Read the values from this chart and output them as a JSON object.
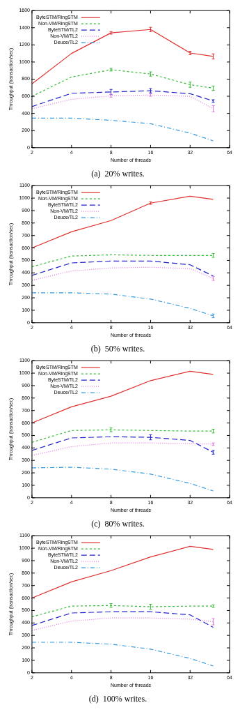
{
  "chart_data": [
    {
      "type": "line",
      "title": "(a)  20% writes.",
      "xlabel": "Number of threads",
      "ylabel": "Throughput (transaction/sec)",
      "x": [
        2,
        4,
        8,
        16,
        32,
        48
      ],
      "log": "x",
      "xlim": [
        2,
        64
      ],
      "xticks": [
        2,
        4,
        8,
        16,
        32,
        64
      ],
      "ylim": [
        0,
        1600
      ],
      "yticks": [
        0,
        200,
        400,
        600,
        800,
        1000,
        1200,
        1400,
        1600
      ],
      "legend": "top left",
      "series": [
        {
          "name": "ByteSTM/RingSTM",
          "color": "#e03030",
          "line_style": "solid",
          "values": [
            745,
            1100,
            1340,
            1380,
            1105,
            1065
          ],
          "errors": [
            null,
            null,
            15,
            25,
            20,
            30
          ]
        },
        {
          "name": "Non-VM/RingSTM",
          "color": "#33bb33",
          "line_style": "dashed",
          "values": [
            600,
            825,
            910,
            860,
            735,
            695
          ],
          "errors": [
            null,
            null,
            15,
            25,
            30,
            25
          ]
        },
        {
          "name": "ByteSTM/TL2",
          "color": "#2222cc",
          "line_style": "longdash",
          "values": [
            480,
            635,
            650,
            665,
            630,
            545
          ],
          "errors": [
            null,
            null,
            30,
            25,
            null,
            15
          ]
        },
        {
          "name": "Non-VM/TL2",
          "color": "#dd77dd",
          "line_style": "dotted",
          "values": [
            455,
            565,
            605,
            615,
            600,
            455
          ],
          "errors": [
            null,
            null,
            15,
            15,
            null,
            35
          ]
        },
        {
          "name": "Deuce/TL2",
          "color": "#3399dd",
          "line_style": "dashdot",
          "values": [
            345,
            345,
            320,
            280,
            170,
            80
          ]
        }
      ]
    },
    {
      "type": "line",
      "title": "(b)  50% writes.",
      "xlabel": "Number of threads",
      "ylabel": "Throughput (transaction/sec)",
      "x": [
        2,
        4,
        8,
        16,
        32,
        48
      ],
      "log": "x",
      "xlim": [
        2,
        64
      ],
      "xticks": [
        2,
        4,
        8,
        16,
        32,
        64
      ],
      "ylim": [
        0,
        1100
      ],
      "yticks": [
        0,
        100,
        200,
        300,
        400,
        500,
        600,
        700,
        800,
        900,
        1000,
        1100
      ],
      "legend": "top left",
      "series": [
        {
          "name": "ByteSTM/RingSTM",
          "color": "#e03030",
          "line_style": "solid",
          "values": [
            600,
            730,
            820,
            960,
            1015,
            990
          ],
          "errors": [
            null,
            null,
            null,
            10,
            null,
            null
          ]
        },
        {
          "name": "Non-VM/RingSTM",
          "color": "#33bb33",
          "line_style": "dashed",
          "values": [
            450,
            535,
            545,
            540,
            540,
            540
          ],
          "errors": [
            null,
            null,
            null,
            null,
            null,
            15
          ]
        },
        {
          "name": "ByteSTM/TL2",
          "color": "#2222cc",
          "line_style": "longdash",
          "values": [
            380,
            480,
            495,
            495,
            465,
            375
          ]
        },
        {
          "name": "Non-VM/TL2",
          "color": "#dd77dd",
          "line_style": "dotted",
          "values": [
            340,
            415,
            440,
            445,
            435,
            355
          ],
          "errors": [
            null,
            null,
            null,
            null,
            null,
            15
          ]
        },
        {
          "name": "Deuce/TL2",
          "color": "#3399dd",
          "line_style": "dashdot",
          "values": [
            240,
            240,
            230,
            190,
            115,
            55
          ],
          "errors": [
            null,
            null,
            null,
            null,
            null,
            15
          ]
        }
      ]
    },
    {
      "type": "line",
      "title": "(c)  80% writes.",
      "xlabel": "Number of threads",
      "ylabel": "Throughput (transaction/sec)",
      "x": [
        2,
        4,
        8,
        16,
        32,
        48
      ],
      "log": "x",
      "xlim": [
        2,
        64
      ],
      "xticks": [
        2,
        4,
        8,
        16,
        32,
        64
      ],
      "ylim": [
        0,
        1100
      ],
      "yticks": [
        0,
        100,
        200,
        300,
        400,
        500,
        600,
        700,
        800,
        900,
        1000,
        1100
      ],
      "legend": "top left",
      "series": [
        {
          "name": "ByteSTM/RingSTM",
          "color": "#e03030",
          "line_style": "solid",
          "values": [
            600,
            730,
            815,
            940,
            1015,
            990
          ]
        },
        {
          "name": "Non-VM/RingSTM",
          "color": "#33bb33",
          "line_style": "dashed",
          "values": [
            445,
            540,
            545,
            540,
            535,
            535
          ],
          "errors": [
            null,
            null,
            15,
            null,
            null,
            15
          ]
        },
        {
          "name": "ByteSTM/TL2",
          "color": "#2222cc",
          "line_style": "longdash",
          "values": [
            380,
            480,
            490,
            485,
            460,
            365
          ],
          "errors": [
            null,
            null,
            null,
            20,
            null,
            15
          ]
        },
        {
          "name": "Non-VM/TL2",
          "color": "#dd77dd",
          "line_style": "dotted",
          "values": [
            340,
            410,
            440,
            440,
            435,
            430
          ],
          "errors": [
            null,
            null,
            null,
            null,
            null,
            10
          ]
        },
        {
          "name": "Deuce/TL2",
          "color": "#3399dd",
          "line_style": "dashdot",
          "values": [
            240,
            245,
            230,
            190,
            115,
            55
          ]
        }
      ]
    },
    {
      "type": "line",
      "title": "(d)  100% writes.",
      "xlabel": "Number of threads",
      "ylabel": "Throughput (transaction/sec)",
      "x": [
        2,
        4,
        8,
        16,
        32,
        48
      ],
      "log": "x",
      "xlim": [
        2,
        64
      ],
      "xticks": [
        2,
        4,
        8,
        16,
        32,
        64
      ],
      "ylim": [
        0,
        1100
      ],
      "yticks": [
        0,
        100,
        200,
        300,
        400,
        500,
        600,
        700,
        800,
        900,
        1000,
        1100
      ],
      "legend": "top left",
      "series": [
        {
          "name": "ByteSTM/RingSTM",
          "color": "#e03030",
          "line_style": "solid",
          "values": [
            600,
            730,
            820,
            930,
            1015,
            990
          ]
        },
        {
          "name": "Non-VM/RingSTM",
          "color": "#33bb33",
          "line_style": "dashed",
          "values": [
            450,
            535,
            540,
            530,
            535,
            535
          ],
          "errors": [
            null,
            null,
            15,
            20,
            null,
            10
          ]
        },
        {
          "name": "ByteSTM/TL2",
          "color": "#2222cc",
          "line_style": "longdash",
          "values": [
            380,
            480,
            490,
            490,
            465,
            365
          ]
        },
        {
          "name": "Non-VM/TL2",
          "color": "#dd77dd",
          "line_style": "dotted",
          "values": [
            340,
            415,
            440,
            440,
            430,
            410
          ],
          "errors": [
            null,
            null,
            null,
            null,
            null,
            25
          ]
        },
        {
          "name": "Deuce/TL2",
          "color": "#3399dd",
          "line_style": "dashdot",
          "values": [
            245,
            245,
            230,
            190,
            115,
            55
          ]
        }
      ]
    }
  ]
}
